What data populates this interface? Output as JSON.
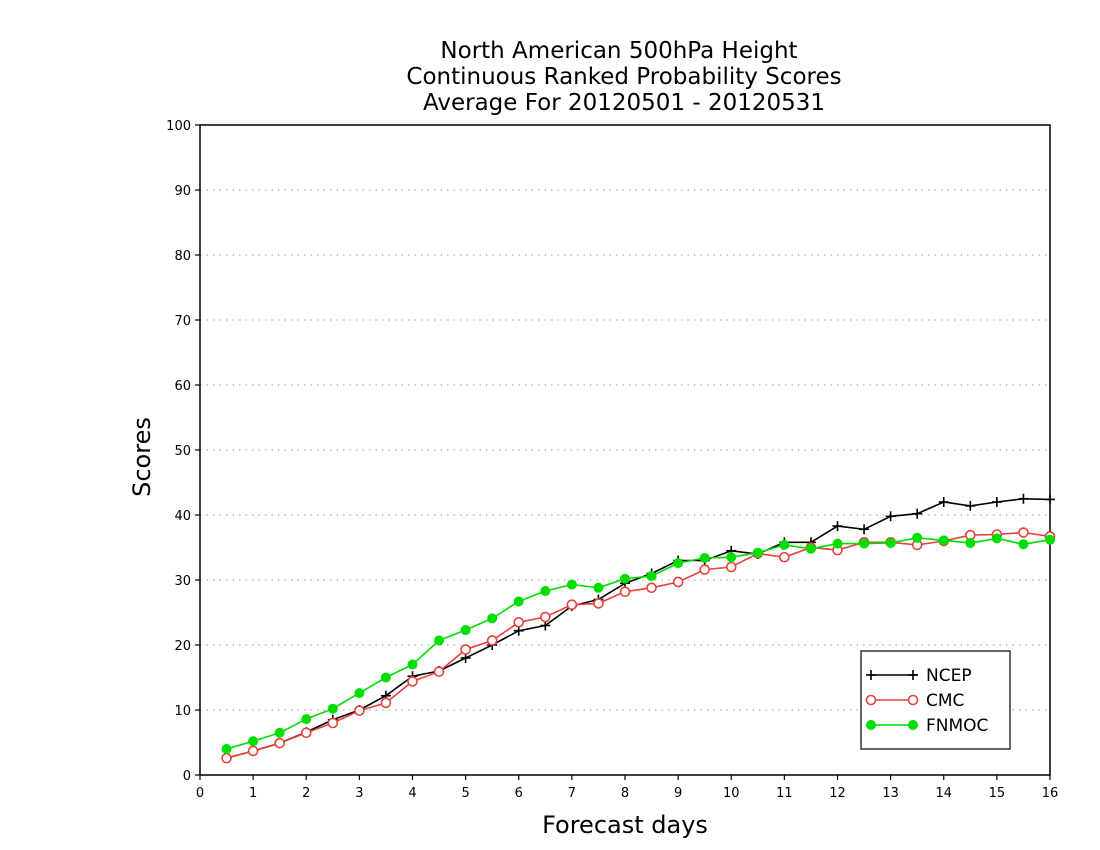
{
  "chart_data": {
    "type": "line",
    "title_lines": [
      "North American 500hPa Height",
      "Continuous Ranked Probability Scores",
      "Average For 20120501 - 20120531"
    ],
    "xlabel": "Forecast days",
    "ylabel": "Scores",
    "xlim": [
      0,
      16
    ],
    "ylim": [
      0,
      100
    ],
    "x_ticks": [
      0,
      1,
      2,
      3,
      4,
      5,
      6,
      7,
      8,
      9,
      10,
      11,
      12,
      13,
      14,
      15,
      16
    ],
    "y_ticks": [
      0,
      10,
      20,
      30,
      40,
      50,
      60,
      70,
      80,
      90,
      100
    ],
    "grid": "horizontal dotted",
    "legend_position": "bottom-right",
    "x": [
      0.5,
      1,
      1.5,
      2,
      2.5,
      3,
      3.5,
      4,
      4.5,
      5,
      5.5,
      6,
      6.5,
      7,
      7.5,
      8,
      8.5,
      9,
      9.5,
      10,
      10.5,
      11,
      11.5,
      12,
      12.5,
      13,
      13.5,
      14,
      14.5,
      15,
      15.5,
      16
    ],
    "series": [
      {
        "name": "NCEP",
        "color": "#000000",
        "marker": "plus",
        "values": [
          2.6,
          3.7,
          4.9,
          6.6,
          8.5,
          10.0,
          12.2,
          15.2,
          16.0,
          18.0,
          20.0,
          22.2,
          23.0,
          26.0,
          27.0,
          29.5,
          31.0,
          33.0,
          33.0,
          34.5,
          34.0,
          35.8,
          35.8,
          38.3,
          37.8,
          39.8,
          40.2,
          42.0,
          41.4,
          42.0,
          42.5,
          42.4
        ]
      },
      {
        "name": "CMC",
        "color": "#e8403a",
        "marker": "open-circle",
        "values": [
          2.6,
          3.7,
          4.9,
          6.5,
          8.0,
          9.9,
          11.1,
          14.4,
          15.9,
          19.3,
          20.7,
          23.5,
          24.3,
          26.2,
          26.4,
          28.2,
          28.8,
          29.7,
          31.6,
          32.0,
          34.1,
          33.5,
          35.0,
          34.6,
          35.8,
          35.8,
          35.4,
          36.0,
          36.9,
          37.0,
          37.3,
          36.7
        ]
      },
      {
        "name": "FNMOC",
        "color": "#00dd00",
        "marker": "filled-circle",
        "values": [
          4.0,
          5.2,
          6.5,
          8.6,
          10.2,
          12.6,
          15.0,
          17.0,
          20.7,
          22.3,
          24.1,
          26.7,
          28.3,
          29.3,
          28.8,
          30.2,
          30.6,
          32.6,
          33.4,
          33.5,
          34.2,
          35.4,
          34.8,
          35.6,
          35.6,
          35.7,
          36.5,
          36.1,
          35.7,
          36.4,
          35.5,
          36.2
        ]
      }
    ]
  }
}
